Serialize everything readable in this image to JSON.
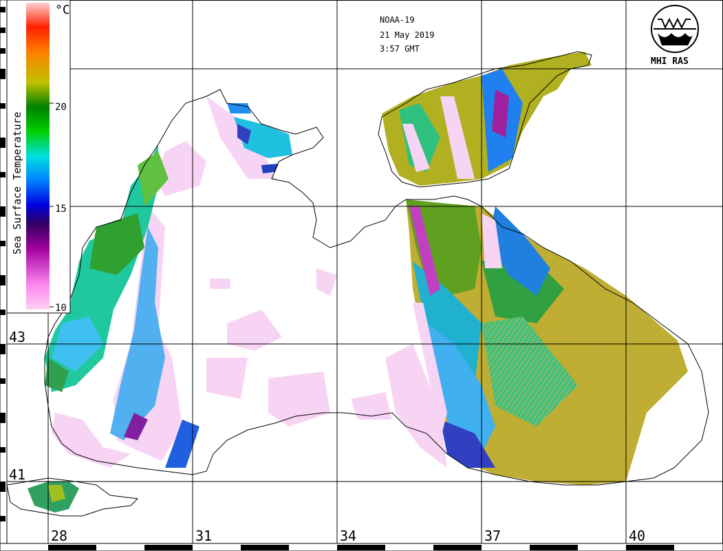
{
  "header": {
    "satellite": "NOAA-19",
    "date": "21 May 2019",
    "time": "3:57 GMT"
  },
  "logo": {
    "text": "MHI RAS",
    "icon": "mhi-ras-emblem-icon"
  },
  "colorbar": {
    "title": "Sea Surface Temperature",
    "unit": "°C",
    "ticks": [
      "10",
      "15",
      "20"
    ],
    "colors": [
      "#ffd0f0",
      "#ff7ff0",
      "#a000a0",
      "#300060",
      "#0000e0",
      "#0080ff",
      "#00e0e0",
      "#00e000",
      "#008000",
      "#c0c000",
      "#ff8000",
      "#ff2000",
      "#ffc0c0"
    ]
  },
  "grid": {
    "longitude_labels": [
      "28",
      "31",
      "34",
      "37",
      "40"
    ],
    "latitude_labels": [
      "43",
      "41"
    ]
  },
  "palette": {
    "land": "#ffffff",
    "coast": "#000000",
    "cloud_mask": "#f8d4f4"
  }
}
